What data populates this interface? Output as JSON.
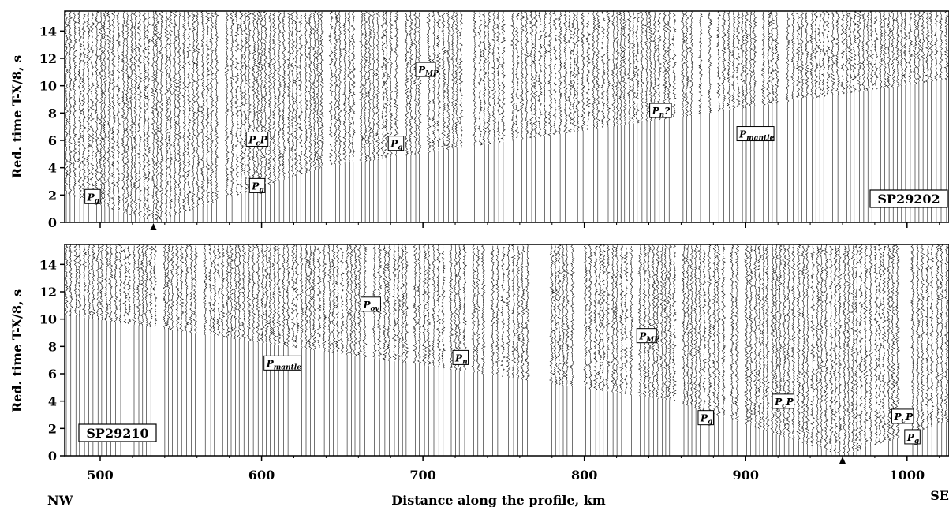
{
  "axes": {
    "ylabel": "Red. time  T-X/8, s",
    "xlabel": "Distance along the profile, km",
    "left_end_label": "NW",
    "right_end_label": "SE",
    "x_ticks": [
      "500",
      "600",
      "700",
      "800",
      "900",
      "1000"
    ],
    "y_ticks": [
      "0",
      "2",
      "4",
      "6",
      "8",
      "10",
      "12",
      "14"
    ],
    "x_range": [
      478,
      1026
    ],
    "y_range": [
      0,
      15
    ]
  },
  "panels": [
    {
      "id": "top",
      "shot_point_label": "SP29202",
      "shot_point_km": 533,
      "phases": [
        {
          "text": "P",
          "sub": "g",
          "sup": "",
          "x": 492,
          "t": 1.6
        },
        {
          "text": "P",
          "sub": "g",
          "sup": "",
          "x": 594,
          "t": 2.4
        },
        {
          "text": "P",
          "sub": "c",
          "sup": "P",
          "x": 592,
          "t": 5.8
        },
        {
          "text": "P",
          "sub": "MP",
          "sup": "",
          "x": 697,
          "t": 10.9
        },
        {
          "text": "P",
          "sub": "g",
          "sup": "",
          "x": 680,
          "t": 5.5
        },
        {
          "text": "P",
          "sub": "n",
          "sup": "?",
          "x": 842,
          "t": 7.9
        },
        {
          "text": "P",
          "sub": "mantle",
          "sup": "",
          "x": 896,
          "t": 6.2
        }
      ]
    },
    {
      "id": "bottom",
      "shot_point_label": "SP29210",
      "shot_point_km": 960,
      "phases": [
        {
          "text": "P",
          "sub": "mantle",
          "sup": "",
          "x": 603,
          "t": 6.5
        },
        {
          "text": "P",
          "sub": "ov",
          "sup": "",
          "x": 663,
          "t": 10.8
        },
        {
          "text": "P",
          "sub": "n",
          "sup": "",
          "x": 720,
          "t": 6.9
        },
        {
          "text": "P",
          "sub": "MP",
          "sup": "",
          "x": 834,
          "t": 8.5
        },
        {
          "text": "P",
          "sub": "g",
          "sup": "",
          "x": 872,
          "t": 2.5
        },
        {
          "text": "P",
          "sub": "c",
          "sup": "P",
          "x": 918,
          "t": 3.7
        },
        {
          "text": "P",
          "sub": "c",
          "sup": "P",
          "x": 992,
          "t": 2.6
        },
        {
          "text": "P",
          "sub": "g",
          "sup": "",
          "x": 1000,
          "t": 1.1
        }
      ]
    }
  ]
}
